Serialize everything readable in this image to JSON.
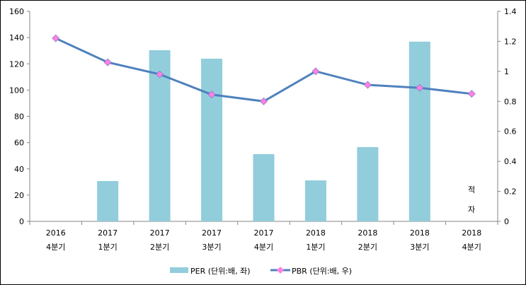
{
  "chart_data": {
    "type": "bar+line",
    "categories": [
      [
        "2016",
        "4분기"
      ],
      [
        "2017",
        "1분기"
      ],
      [
        "2017",
        "2분기"
      ],
      [
        "2017",
        "3분기"
      ],
      [
        "2017",
        "4분기"
      ],
      [
        "2018",
        "1분기"
      ],
      [
        "2018",
        "2분기"
      ],
      [
        "2018",
        "3분기"
      ],
      [
        "2018",
        "4분기"
      ]
    ],
    "series": [
      {
        "name": "PER (단위:배, 좌)",
        "type": "bar",
        "axis": "left",
        "color": "#92CDDC",
        "values": [
          null,
          30.7,
          130.4,
          123.9,
          51.2,
          31.2,
          56.6,
          136.9,
          null
        ]
      },
      {
        "name": "PBR (단위:배, 우)",
        "type": "line",
        "axis": "right",
        "color": "#4F81BD",
        "marker_color": "#FF80E0",
        "values": [
          1.22,
          1.06,
          0.98,
          0.845,
          0.8,
          1.0,
          0.91,
          0.89,
          0.85
        ]
      }
    ],
    "left_axis": {
      "range": [
        0,
        160
      ],
      "ticks": [
        "0",
        "20",
        "40",
        "60",
        "80",
        "100",
        "120",
        "140",
        "160"
      ]
    },
    "right_axis": {
      "range": [
        0,
        1.4
      ],
      "ticks": [
        "0",
        "0.2",
        "0.4",
        "0.6",
        "0.8",
        "1",
        "1.2",
        "1.4"
      ]
    },
    "annotation": [
      "적",
      "자"
    ],
    "legend_position": "bottom"
  }
}
